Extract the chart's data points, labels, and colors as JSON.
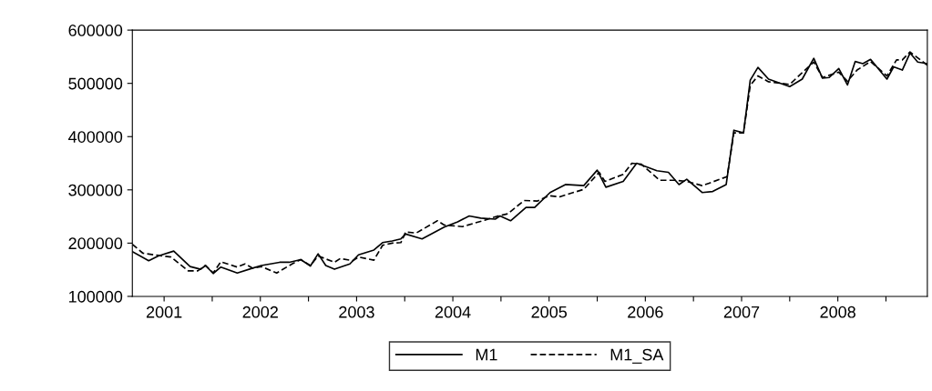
{
  "chart_data": {
    "type": "line",
    "x": [
      2001.17,
      2001.34,
      2001.44,
      2001.6,
      2001.77,
      2001.88,
      2001.93,
      2002.01,
      2002.09,
      2002.26,
      2002.42,
      2002.51,
      2002.7,
      2002.8,
      2002.92,
      2003.02,
      2003.1,
      2003.18,
      2003.27,
      2003.43,
      2003.52,
      2003.68,
      2003.77,
      2003.87,
      2003.96,
      2004.01,
      2004.18,
      2004.41,
      2004.55,
      2004.67,
      2004.79,
      2004.94,
      2004.99,
      2005.1,
      2005.26,
      2005.35,
      2005.51,
      2005.67,
      2005.86,
      2006.0,
      2006.09,
      2006.27,
      2006.41,
      2006.62,
      2006.74,
      2006.85,
      2006.93,
      2007.09,
      2007.2,
      2007.34,
      2007.42,
      2007.52,
      2007.59,
      2007.67,
      2007.78,
      2008.0,
      2008.13,
      2008.25,
      2008.34,
      2008.41,
      2008.51,
      2008.6,
      2008.68,
      2008.76,
      2008.84,
      2009.01,
      2009.08,
      2009.17,
      2009.25,
      2009.33,
      2009.43
    ],
    "series": [
      {
        "name": "M1",
        "color": "#000000",
        "line_style": "solid",
        "values": [
          184000,
          167000,
          176000,
          185000,
          156000,
          151000,
          158000,
          143000,
          155000,
          144000,
          153000,
          158000,
          164000,
          164000,
          169000,
          157000,
          180000,
          158000,
          151000,
          161000,
          178000,
          187000,
          201000,
          204000,
          208000,
          217000,
          208000,
          230000,
          240000,
          251000,
          247000,
          245000,
          251000,
          242000,
          267000,
          267000,
          295000,
          310000,
          308000,
          337000,
          305000,
          316000,
          350000,
          336000,
          333000,
          310000,
          320000,
          295000,
          297000,
          310000,
          412000,
          407000,
          506000,
          530000,
          508000,
          494000,
          508000,
          547000,
          510000,
          511000,
          528000,
          497000,
          541000,
          537000,
          545000,
          508000,
          531000,
          525000,
          557000,
          540000,
          537000
        ]
      },
      {
        "name": "M1_SA",
        "color": "#000000",
        "line_style": "dashed",
        "x": [
          2001.17,
          2001.28,
          2001.44,
          2001.57,
          2001.75,
          2001.85,
          2001.93,
          2002.01,
          2002.09,
          2002.26,
          2002.34,
          2002.42,
          2002.51,
          2002.67,
          2002.83,
          2002.92,
          2003.02,
          2003.1,
          2003.27,
          2003.33,
          2003.46,
          2003.52,
          2003.68,
          2003.77,
          2003.87,
          2003.96,
          2004.01,
          2004.12,
          2004.34,
          2004.41,
          2004.6,
          2004.83,
          2004.97,
          2005.07,
          2005.24,
          2005.38,
          2005.5,
          2005.61,
          2005.86,
          2006.02,
          2006.08,
          2006.27,
          2006.36,
          2006.46,
          2006.65,
          2006.8,
          2006.93,
          2007.09,
          2007.17,
          2007.35,
          2007.42,
          2007.52,
          2007.59,
          2007.67,
          2007.78,
          2008.0,
          2008.13,
          2008.25,
          2008.34,
          2008.51,
          2008.6,
          2008.7,
          2008.84,
          2009.01,
          2009.11,
          2009.17,
          2009.25,
          2009.33,
          2009.43
        ],
        "values": [
          198000,
          181000,
          177000,
          174000,
          148000,
          148000,
          158000,
          144000,
          165000,
          155000,
          161000,
          153000,
          156000,
          144000,
          161000,
          169000,
          158000,
          176000,
          164000,
          171000,
          167000,
          174000,
          168000,
          196000,
          200000,
          201000,
          221000,
          219000,
          242000,
          234000,
          231000,
          243000,
          251000,
          255000,
          280000,
          279000,
          289000,
          287000,
          301000,
          333000,
          316000,
          329000,
          350000,
          348000,
          318000,
          318000,
          316000,
          308000,
          313000,
          325000,
          407000,
          407000,
          496000,
          514000,
          503000,
          498000,
          520000,
          540000,
          511000,
          521000,
          504000,
          525000,
          541000,
          514000,
          544000,
          544000,
          559000,
          548000,
          534000
        ]
      }
    ],
    "xlim": [
      2001.17,
      2009.43
    ],
    "xticks": [
      {
        "value": 2001.5,
        "label": "2001"
      },
      {
        "value": 2002,
        "label": null
      },
      {
        "value": 2002.5,
        "label": "2002"
      },
      {
        "value": 2003,
        "label": null
      },
      {
        "value": 2003.5,
        "label": "2003"
      },
      {
        "value": 2004,
        "label": null
      },
      {
        "value": 2004.5,
        "label": "2004"
      },
      {
        "value": 2005,
        "label": null
      },
      {
        "value": 2005.5,
        "label": "2005"
      },
      {
        "value": 2006,
        "label": null
      },
      {
        "value": 2006.5,
        "label": "2006"
      },
      {
        "value": 2007,
        "label": null
      },
      {
        "value": 2007.5,
        "label": "2007"
      },
      {
        "value": 2008,
        "label": null
      },
      {
        "value": 2008.5,
        "label": "2008"
      },
      {
        "value": 2009,
        "label": null
      }
    ],
    "ylim": [
      100000,
      600000
    ],
    "yticks": [
      100000,
      200000,
      300000,
      400000,
      500000,
      600000
    ],
    "grid": false,
    "legend": "bottom",
    "marker": "none"
  }
}
